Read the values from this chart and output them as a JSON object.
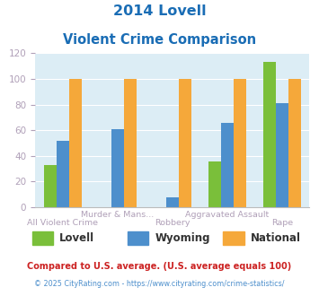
{
  "title_line1": "2014 Lovell",
  "title_line2": "Violent Crime Comparison",
  "categories": [
    "All Violent Crime",
    "Murder & Mans...",
    "Robbery",
    "Aggravated Assault",
    "Rape"
  ],
  "series": {
    "Lovell": [
      33,
      0,
      0,
      36,
      113
    ],
    "Wyoming": [
      52,
      61,
      8,
      66,
      81
    ],
    "National": [
      100,
      100,
      100,
      100,
      100
    ]
  },
  "colors": {
    "Lovell": "#7abf3a",
    "Wyoming": "#4d8fcc",
    "National": "#f5a83a"
  },
  "ylim": [
    0,
    120
  ],
  "yticks": [
    0,
    20,
    40,
    60,
    80,
    100,
    120
  ],
  "plot_bg": "#dcedf5",
  "title_color": "#1a6db5",
  "axis_label_color": "#b0a0b8",
  "tick_color": "#b0a0b8",
  "legend_label_color": "#333333",
  "footnote1": "Compared to U.S. average. (U.S. average equals 100)",
  "footnote2": "© 2025 CityRating.com - https://www.cityrating.com/crime-statistics/",
  "footnote1_color": "#cc2222",
  "footnote2_color": "#4d8fcc",
  "x_top_labels": [
    "Murder & Mans...",
    "Aggravated Assault"
  ],
  "x_bottom_labels": [
    "All Violent Crime",
    "Robbery",
    "Rape"
  ]
}
